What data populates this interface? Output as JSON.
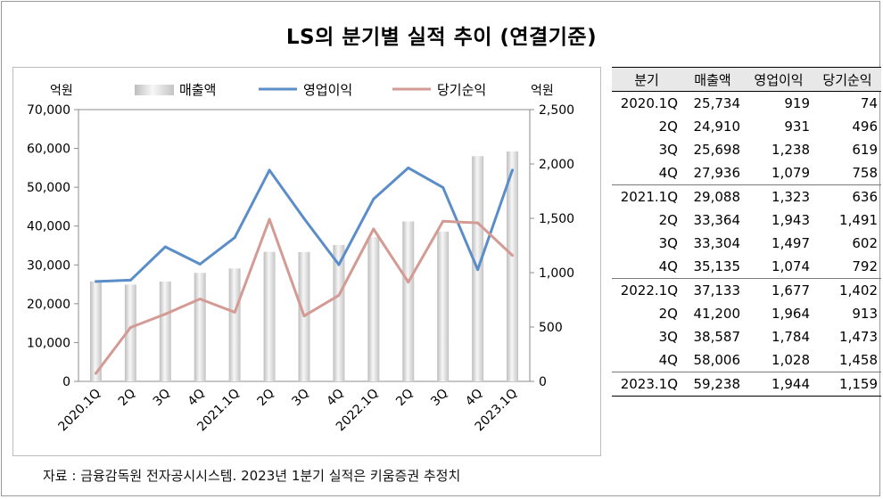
{
  "title": "LS의 분기별 실적 추이 (연결기준)",
  "source": "자료 : 금융감독원 전자공시시스템. 2023년 1분기 실적은 키움증권 추정치",
  "chart_data": {
    "type": "bar",
    "categories": [
      "2020.1Q",
      "2Q",
      "3Q",
      "4Q",
      "2021.1Q",
      "2Q",
      "3Q",
      "4Q",
      "2022.1Q",
      "2Q",
      "3Q",
      "4Q",
      "2023.1Q"
    ],
    "left_unit": "억원",
    "right_unit": "억원",
    "ylim_left": [
      0,
      70000
    ],
    "ylim_right": [
      0,
      2500
    ],
    "left_ticks": [
      "0",
      "10,000",
      "20,000",
      "30,000",
      "40,000",
      "50,000",
      "60,000",
      "70,000"
    ],
    "right_ticks": [
      "0",
      "500",
      "1,000",
      "1,500",
      "2,000",
      "2,500"
    ],
    "legend_placement": "top",
    "series": [
      {
        "name": "매출액",
        "type": "bar",
        "axis": "left",
        "color": "#d9d9d9",
        "values": [
          25734,
          24910,
          25698,
          27936,
          29088,
          33364,
          33304,
          35135,
          37133,
          41200,
          38587,
          58006,
          59238
        ]
      },
      {
        "name": "영업이익",
        "type": "line",
        "axis": "right",
        "color": "#5b8dc9",
        "values": [
          919,
          931,
          1238,
          1079,
          1323,
          1943,
          1497,
          1074,
          1677,
          1964,
          1784,
          1028,
          1944
        ]
      },
      {
        "name": "당기순익",
        "type": "line",
        "axis": "right",
        "color": "#d49a94",
        "values": [
          74,
          496,
          619,
          758,
          636,
          1491,
          602,
          792,
          1402,
          913,
          1473,
          1458,
          1159
        ]
      }
    ]
  },
  "table": {
    "headers": [
      "분기",
      "매출액",
      "영업이익",
      "당기순익"
    ],
    "rows": [
      [
        "2020.1Q",
        "25,734",
        "919",
        "74"
      ],
      [
        "2Q",
        "24,910",
        "931",
        "496"
      ],
      [
        "3Q",
        "25,698",
        "1,238",
        "619"
      ],
      [
        "4Q",
        "27,936",
        "1,079",
        "758"
      ],
      [
        "2021.1Q",
        "29,088",
        "1,323",
        "636"
      ],
      [
        "2Q",
        "33,364",
        "1,943",
        "1,491"
      ],
      [
        "3Q",
        "33,304",
        "1,497",
        "602"
      ],
      [
        "4Q",
        "35,135",
        "1,074",
        "792"
      ],
      [
        "2022.1Q",
        "37,133",
        "1,677",
        "1,402"
      ],
      [
        "2Q",
        "41,200",
        "1,964",
        "913"
      ],
      [
        "3Q",
        "38,587",
        "1,784",
        "1,473"
      ],
      [
        "4Q",
        "58,006",
        "1,028",
        "1,458"
      ],
      [
        "2023.1Q",
        "59,238",
        "1,944",
        "1,159"
      ]
    ]
  }
}
